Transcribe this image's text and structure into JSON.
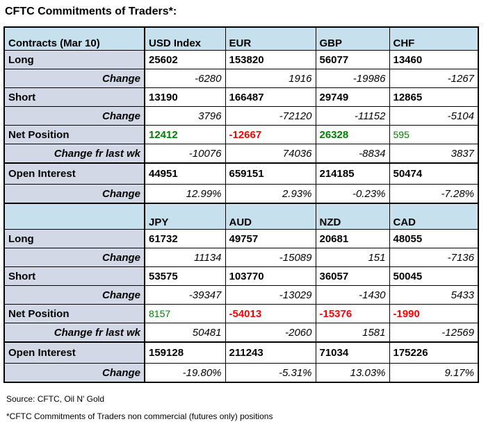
{
  "title": "CFTC Commitments of Traders*:",
  "row_labels": {
    "long": "Long",
    "change": "Change",
    "short": "Short",
    "net": "Net Position",
    "chg_wk": "Change fr last wk",
    "oi": "Open Interest"
  },
  "colors": {
    "positive": "#008000",
    "negative": "#ff0000",
    "header_bg": "#c6e0ed",
    "label_bg": "#d2d8e6",
    "border": "#000000"
  },
  "sections": [
    {
      "header_label": "Contracts (Mar 10)",
      "columns": [
        "USD Index",
        "EUR",
        "GBP",
        "CHF"
      ],
      "long": [
        "25602",
        "153820",
        "56077",
        "13460"
      ],
      "long_change": [
        "-6280",
        "1916",
        "-19986",
        "-1267"
      ],
      "short": [
        "13190",
        "166487",
        "29749",
        "12865"
      ],
      "short_change": [
        "3796",
        "-72120",
        "-11152",
        "-5104"
      ],
      "net": [
        "12412",
        "-12667",
        "26328",
        "595"
      ],
      "net_classes": [
        "net pos",
        "net neg",
        "net pos",
        "net pos light"
      ],
      "net_change": [
        "-10076",
        "74036",
        "-8834",
        "3837"
      ],
      "open_interest": [
        "44951",
        "659151",
        "214185",
        "50474"
      ],
      "oi_change": [
        "12.99%",
        "2.93%",
        "-0.23%",
        "-7.28%"
      ]
    },
    {
      "header_label": "",
      "columns": [
        "JPY",
        "AUD",
        "NZD",
        "CAD"
      ],
      "long": [
        "61732",
        "49757",
        "20681",
        "48055"
      ],
      "long_change": [
        "11134",
        "-15089",
        "151",
        "-7136"
      ],
      "short": [
        "53575",
        "103770",
        "36057",
        "50045"
      ],
      "short_change": [
        "-39347",
        "-13029",
        "-1430",
        "5433"
      ],
      "net": [
        "8157",
        "-54013",
        "-15376",
        "-1990"
      ],
      "net_classes": [
        "net pos light",
        "net neg",
        "net neg",
        "net neg"
      ],
      "net_change": [
        "50481",
        "-2060",
        "1581",
        "-12569"
      ],
      "open_interest": [
        "159128",
        "211243",
        "71034",
        "175226"
      ],
      "oi_change": [
        "-19.80%",
        "-5.31%",
        "13.03%",
        "9.17%"
      ]
    }
  ],
  "footer": {
    "source": "Source: CFTC, Oil N' Gold",
    "note": "*CFTC Commitments of Traders non commercial (futures only) positions"
  }
}
